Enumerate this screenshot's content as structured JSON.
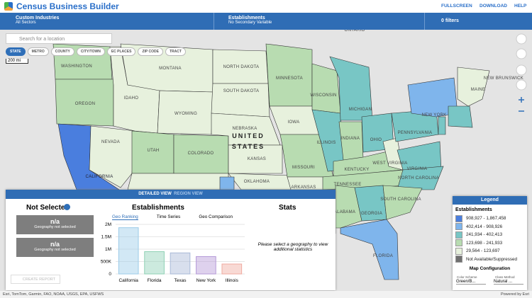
{
  "header": {
    "title": "Census Business Builder",
    "fullscreen": "FULLSCREEN",
    "download": "DOWNLOAD",
    "help": "HELP"
  },
  "toolbar": {
    "industry_label": "Custom Industries",
    "industry_value": "All Sectors",
    "variable_label": "Establishments",
    "variable_value": "No Secondary Variable",
    "filters": "0 filters"
  },
  "search": {
    "placeholder": "Search for a location"
  },
  "geography_levels": [
    "STATE",
    "METRO",
    "COUNTY",
    "CITY/TOWN",
    "EC PLACES",
    "ZIP CODE",
    "TRACT"
  ],
  "scale": "200 mi",
  "map_labels": [
    "WASHINGTON",
    "OREGON",
    "CALIFORNIA",
    "NEVADA",
    "IDAHO",
    "MONTANA",
    "WYOMING",
    "UTAH",
    "COLORADO",
    "NORTH DAKOTA",
    "SOUTH DAKOTA",
    "NEBRASKA",
    "KANSAS",
    "OKLAHOMA",
    "ARKANSAS",
    "MISSOURI",
    "IOWA",
    "MINNESOTA",
    "WISCONSIN",
    "MICHIGAN",
    "ILLINOIS",
    "INDIANA",
    "OHIO",
    "KENTUCKY",
    "TENNESSEE",
    "WEST VIRGINIA",
    "VIRGINIA",
    "PENNSYLVANIA",
    "NEW YORK",
    "MAINE",
    "NORTH CAROLINA",
    "SOUTH CAROLINA",
    "GEORGIA",
    "ALABAMA",
    "FLORIDA",
    "UNITED",
    "STATES",
    "ONTARIO",
    "NEW BRUNSWICK"
  ],
  "panel": {
    "tabs": [
      "DETAILED VIEW",
      "REGION VIEW"
    ],
    "selection_title": "Not Selected",
    "selection_boxes": [
      {
        "value": "n/a",
        "note": "Geography not selected"
      },
      {
        "value": "n/a",
        "note": "Geography not selected"
      }
    ],
    "create_report": "CREATE REPORT",
    "stats_title": "Stats",
    "stats_message": "Please select a geography to view additional statistics"
  },
  "chart_data": {
    "type": "bar",
    "title": "Establishments",
    "tabs": [
      "Geo Ranking",
      "Time Series",
      "Geo Comparison"
    ],
    "categories": [
      "California",
      "Florida",
      "Texas",
      "New York",
      "Illinois"
    ],
    "values": [
      1867458,
      900000,
      850000,
      700000,
      400000
    ],
    "colors": [
      "#9ccbe8",
      "#8fd1b5",
      "#a9b9d8",
      "#b59ad8",
      "#f0aaa0"
    ],
    "ylim": [
      0,
      2000000
    ],
    "yticks": [
      0,
      {
        "value": 500000,
        "label": "500K"
      },
      {
        "value": 1000000,
        "label": "1M"
      },
      {
        "value": 1500000,
        "label": "1.5M"
      },
      {
        "value": 2000000,
        "label": "2M"
      }
    ],
    "grid": true
  },
  "legend": {
    "title": "Legend",
    "variable": "Establishments",
    "classes": [
      {
        "label": "908,927 - 1,867,458",
        "color": "#4a7ede"
      },
      {
        "label": "402,414 - 908,926",
        "color": "#7fb5ec"
      },
      {
        "label": "241,934 - 402,413",
        "color": "#78c6c5"
      },
      {
        "label": "123,698 - 241,933",
        "color": "#b8dcb1"
      },
      {
        "label": "29,564 - 123,697",
        "color": "#e7f1dd"
      },
      {
        "label": "Not Available/Suppressed",
        "color": "#707070"
      }
    ],
    "config_title": "Map Configuration",
    "color_scheme_label": "Color Scheme",
    "color_scheme": "Green/B...",
    "class_method_label": "Class Method",
    "class_method": "Natural ..."
  },
  "footer": {
    "attribution": "Esri, TomTom, Garmin, FAO, NOAA, USGS, EPA, USFWS",
    "powered": "Powered by Esri"
  }
}
